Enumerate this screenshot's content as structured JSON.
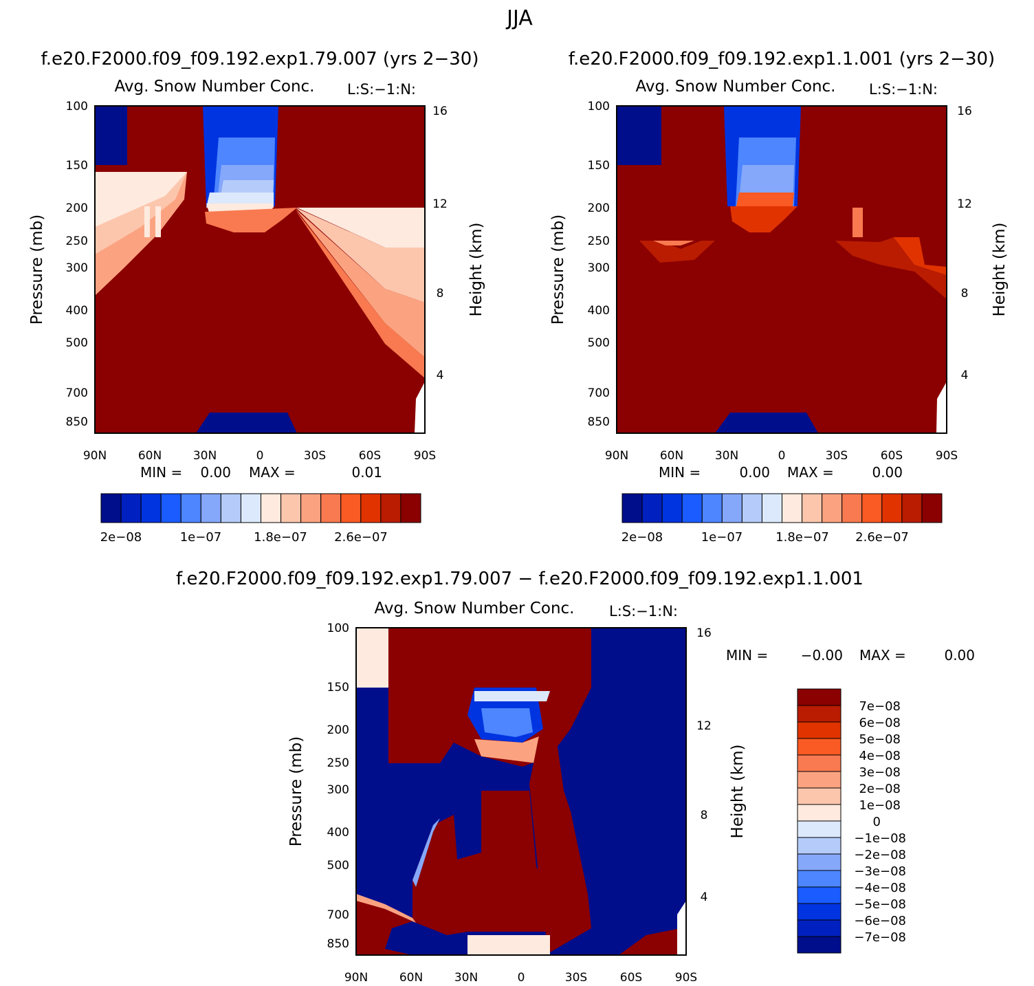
{
  "figure": {
    "title": "JJA",
    "diff_title": "f.e20.F2000.f09_f09.192.exp1.79.007 − f.e20.F2000.f09_f09.192.exp1.1.001"
  },
  "chart_data": [
    {
      "type": "heatmap",
      "case_title": "f.e20.F2000.f09_f09.192.exp1.79.007 (yrs 2−30)",
      "title": "Avg. Snow Number Conc.",
      "units": "L:S:−1:N:",
      "xlabel": "",
      "ylabel": "Pressure (mb)",
      "ylabel_right": "Height (km)",
      "x_ticks": [
        "90N",
        "60N",
        "30N",
        "0",
        "30S",
        "60S",
        "90S"
      ],
      "y_ticks": [
        "100",
        "150",
        "200",
        "250",
        "300",
        "400",
        "500",
        "700",
        "850"
      ],
      "y_right_ticks": [
        "4",
        "8",
        "12",
        "16"
      ],
      "min_label": "MIN =",
      "min_value": "0.00",
      "max_label": "MAX =",
      "max_value": "0.01",
      "colorbar_labels": [
        "2e−08",
        "1e−07",
        "1.8e−07",
        "2.6e−07"
      ]
    },
    {
      "type": "heatmap",
      "case_title": "f.e20.F2000.f09_f09.192.exp1.1.001 (yrs 2−30)",
      "title": "Avg. Snow Number Conc.",
      "units": "L:S:−1:N:",
      "xlabel": "",
      "ylabel": "Pressure (mb)",
      "ylabel_right": "Height (km)",
      "x_ticks": [
        "90N",
        "60N",
        "30N",
        "0",
        "30S",
        "60S",
        "90S"
      ],
      "y_ticks": [
        "100",
        "150",
        "200",
        "250",
        "300",
        "400",
        "500",
        "700",
        "850"
      ],
      "y_right_ticks": [
        "4",
        "8",
        "12",
        "16"
      ],
      "min_label": "MIN =",
      "min_value": "0.00",
      "max_label": "MAX =",
      "max_value": "0.00",
      "colorbar_labels": [
        "2e−08",
        "1e−07",
        "1.8e−07",
        "2.6e−07"
      ]
    },
    {
      "type": "heatmap",
      "title": "Avg. Snow Number Conc.",
      "units": "L:S:−1:N:",
      "xlabel": "",
      "ylabel": "Pressure (mb)",
      "ylabel_right": "Height (km)",
      "x_ticks": [
        "90N",
        "60N",
        "30N",
        "0",
        "30S",
        "60S",
        "90S"
      ],
      "y_ticks": [
        "100",
        "150",
        "200",
        "250",
        "300",
        "400",
        "500",
        "700",
        "850"
      ],
      "y_right_ticks": [
        "4",
        "8",
        "12",
        "16"
      ],
      "min_label": "MIN =",
      "min_value": "−0.00",
      "max_label": "MAX =",
      "max_value": "0.00",
      "colorbar_labels": [
        "7e−08",
        "6e−08",
        "5e−08",
        "4e−08",
        "3e−08",
        "2e−08",
        "1e−08",
        "0",
        "−1e−08",
        "−2e−08",
        "−3e−08",
        "−4e−08",
        "−5e−08",
        "−6e−08",
        "−7e−08"
      ]
    }
  ],
  "colors": {
    "abs_scale": [
      "#000e8c",
      "#0020bf",
      "#0034e0",
      "#1a5cff",
      "#4d86ff",
      "#86a8fa",
      "#b5ccfa",
      "#dce9fc",
      "#feeade",
      "#fcc6ad",
      "#fba381",
      "#f97a50",
      "#fa5a23",
      "#e13300",
      "#b91c00",
      "#8b0000"
    ],
    "diff_scale": [
      "#8b0000",
      "#b91c00",
      "#e13300",
      "#fa5a23",
      "#f97a50",
      "#fba381",
      "#fcc6ad",
      "#feeade",
      "#dce9fc",
      "#b5ccfa",
      "#86a8fa",
      "#4d86ff",
      "#1a5cff",
      "#0034e0",
      "#0020bf",
      "#000e8c"
    ]
  }
}
